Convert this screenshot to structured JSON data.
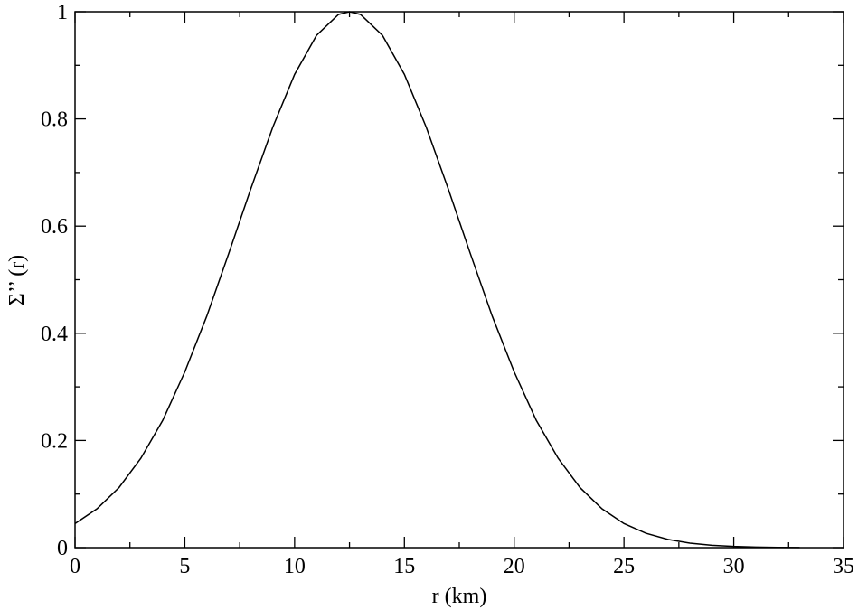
{
  "chart_data": {
    "type": "line",
    "x_label": "r (km)",
    "y_label": "Σ’’ (r)",
    "x": [
      0,
      1,
      2,
      3,
      4,
      5,
      6,
      7,
      8,
      9,
      10,
      11,
      12,
      12.5,
      13,
      14,
      15,
      16,
      17,
      18,
      19,
      20,
      21,
      22,
      23,
      24,
      25,
      26,
      27,
      28,
      29,
      30,
      31,
      32,
      33
    ],
    "series": [
      {
        "name": "Σ’’ (r)",
        "color": "#000000",
        "values": [
          0.045,
          0.0725,
          0.112,
          0.167,
          0.238,
          0.328,
          0.432,
          0.549,
          0.669,
          0.784,
          0.883,
          0.956,
          0.995,
          1,
          0.995,
          0.956,
          0.883,
          0.784,
          0.669,
          0.549,
          0.432,
          0.328,
          0.238,
          0.167,
          0.112,
          0.0725,
          0.045,
          0.0269,
          0.0154,
          0.0085,
          0.0045,
          0.0023,
          0.0011,
          0.0005,
          0.0002
        ]
      }
    ],
    "xlim": [
      0,
      35
    ],
    "ylim": [
      0,
      1
    ],
    "xticks": [
      0,
      5,
      10,
      15,
      20,
      25,
      30,
      35
    ],
    "yticks": [
      0,
      0.2,
      0.4,
      0.6,
      0.8,
      1
    ],
    "xminorticks": [
      2.5,
      7.5,
      12.5,
      17.5,
      22.5,
      27.5,
      32.5
    ],
    "yminorticks": [
      0.1,
      0.3,
      0.5,
      0.7,
      0.9
    ]
  }
}
